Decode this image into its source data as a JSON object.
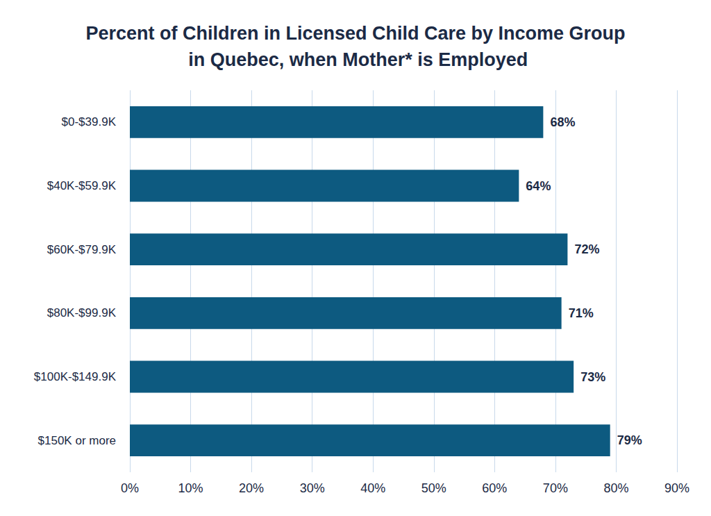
{
  "chart_data": {
    "type": "bar",
    "title": "Percent of Children in Licensed Child Care by Income Group in Quebec, when Mother* is Employed",
    "orientation": "horizontal",
    "categories": [
      "$0-$39.9K",
      "$40K-$59.9K",
      "$60K-$79.9K",
      "$80K-$99.9K",
      "$100K-$149.9K",
      "$150K or more"
    ],
    "values": [
      68,
      64,
      72,
      71,
      73,
      79
    ],
    "value_labels": [
      "68%",
      "64%",
      "72%",
      "71%",
      "73%",
      "79%"
    ],
    "color": "#0d5a80",
    "data_labels": true,
    "grid": true,
    "xlim": [
      0,
      90
    ],
    "xticks": [
      {
        "value": 0,
        "label": "0%"
      },
      {
        "value": 10,
        "label": "10%"
      },
      {
        "value": 20,
        "label": "20%"
      },
      {
        "value": 30,
        "label": "30%"
      },
      {
        "value": 40,
        "label": "40%"
      },
      {
        "value": 50,
        "label": "50%"
      },
      {
        "value": 60,
        "label": "60%"
      },
      {
        "value": 70,
        "label": "70%"
      },
      {
        "value": 80,
        "label": "80%"
      },
      {
        "value": 90,
        "label": "90%"
      }
    ]
  }
}
